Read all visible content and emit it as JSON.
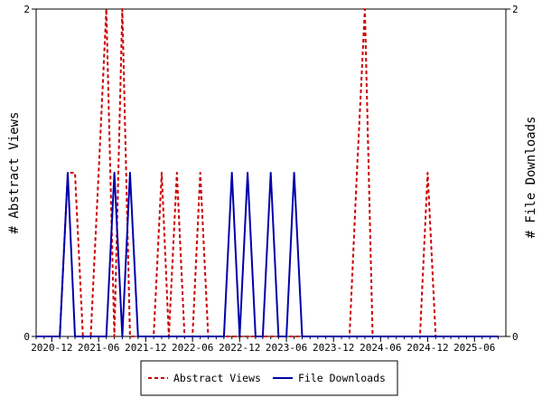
{
  "chart_data": {
    "type": "line",
    "ylabel_left": "# Abstract Views",
    "ylabel_right": "# File Downloads",
    "ylim": [
      0,
      2
    ],
    "y_ticks": [
      "0",
      "2"
    ],
    "x_ticks": [
      "2020-12",
      "2021-06",
      "2021-12",
      "2022-06",
      "2022-12",
      "2023-06",
      "2023-12",
      "2024-06",
      "2024-12",
      "2025-06"
    ],
    "grid": false,
    "legend_position": "bottom",
    "x": [
      "2020-10",
      "2020-11",
      "2020-12",
      "2021-01",
      "2021-02",
      "2021-03",
      "2021-04",
      "2021-05",
      "2021-06",
      "2021-07",
      "2021-08",
      "2021-09",
      "2021-10",
      "2021-11",
      "2021-12",
      "2022-01",
      "2022-02",
      "2022-03",
      "2022-04",
      "2022-05",
      "2022-06",
      "2022-07",
      "2022-08",
      "2022-09",
      "2022-10",
      "2022-11",
      "2022-12",
      "2023-01",
      "2023-02",
      "2023-03",
      "2023-04",
      "2023-05",
      "2023-06",
      "2023-07",
      "2023-08",
      "2023-09",
      "2023-10",
      "2023-11",
      "2023-12",
      "2024-01",
      "2024-02",
      "2024-03",
      "2024-04",
      "2024-05",
      "2024-06",
      "2024-07",
      "2024-08",
      "2024-09",
      "2024-10",
      "2024-11",
      "2024-12",
      "2025-01",
      "2025-02",
      "2025-03",
      "2025-04",
      "2025-05",
      "2025-06",
      "2025-07",
      "2025-08",
      "2025-09"
    ],
    "series": [
      {
        "name": "Abstract Views",
        "color": "#cc0000",
        "dash": true,
        "axis": "left",
        "values": [
          0,
          0,
          0,
          0,
          1,
          1,
          0,
          0,
          1,
          2,
          0,
          2,
          0,
          0,
          0,
          0,
          1,
          0,
          1,
          0,
          0,
          1,
          0,
          0,
          0,
          0,
          0,
          0,
          0,
          0,
          0,
          0,
          0,
          0,
          0,
          0,
          0,
          0,
          0,
          0,
          0,
          1,
          2,
          0,
          0,
          0,
          0,
          0,
          0,
          0,
          1,
          0,
          0,
          0,
          0,
          0,
          0,
          0,
          0,
          0
        ]
      },
      {
        "name": "File Downloads",
        "color": "#0000aa",
        "dash": false,
        "axis": "right",
        "values": [
          0,
          0,
          0,
          0,
          1,
          0,
          0,
          0,
          0,
          0,
          1,
          0,
          1,
          0,
          0,
          0,
          0,
          0,
          0,
          0,
          0,
          0,
          0,
          0,
          0,
          1,
          0,
          1,
          0,
          0,
          1,
          0,
          0,
          1,
          0,
          0,
          0,
          0,
          0,
          0,
          0,
          0,
          0,
          0,
          0,
          0,
          0,
          0,
          0,
          0,
          0,
          0,
          0,
          0,
          0,
          0,
          0,
          0,
          0,
          0
        ]
      }
    ]
  }
}
